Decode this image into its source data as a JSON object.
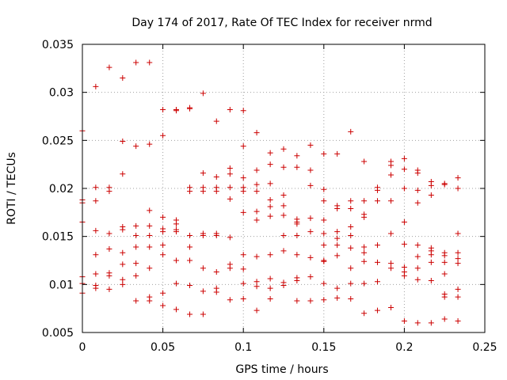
{
  "chart_data": {
    "type": "scatter",
    "title": "Day 174 of 2017, Rate Of TEC Index for receiver nrmd",
    "xlabel": "GPS time / hours",
    "ylabel": "ROTI / TECUs",
    "xlim": [
      0,
      0.25
    ],
    "ylim": [
      0.005,
      0.035
    ],
    "x_ticks": [
      0,
      0.05,
      0.1,
      0.15,
      0.2,
      0.25
    ],
    "x_tick_labels": [
      "0",
      "0.05",
      "0.1",
      "0.15",
      "0.2",
      "0.25"
    ],
    "y_ticks": [
      0.005,
      0.01,
      0.015,
      0.02,
      0.025,
      0.03,
      0.035
    ],
    "y_tick_labels": [
      "0.005",
      "0.01",
      "0.015",
      "0.02",
      "0.025",
      "0.03",
      "0.035"
    ],
    "grid": true,
    "marker": "plus",
    "color": "#cc0000",
    "series": [
      {
        "name": "ROTI",
        "points": [
          [
            0.0,
            0.026
          ],
          [
            0.0,
            0.0188
          ],
          [
            0.0,
            0.0185
          ],
          [
            0.0,
            0.0165
          ],
          [
            0.0,
            0.0108
          ],
          [
            0.0,
            0.0101
          ],
          [
            0.0,
            0.0091
          ],
          [
            0.0083,
            0.0306
          ],
          [
            0.0083,
            0.0201
          ],
          [
            0.0083,
            0.0187
          ],
          [
            0.0083,
            0.0156
          ],
          [
            0.0083,
            0.0131
          ],
          [
            0.0083,
            0.0111
          ],
          [
            0.0083,
            0.0099
          ],
          [
            0.0083,
            0.0096
          ],
          [
            0.0167,
            0.0326
          ],
          [
            0.0167,
            0.0201
          ],
          [
            0.0167,
            0.0197
          ],
          [
            0.0167,
            0.0153
          ],
          [
            0.0167,
            0.0137
          ],
          [
            0.0167,
            0.0112
          ],
          [
            0.0167,
            0.0109
          ],
          [
            0.0167,
            0.0095
          ],
          [
            0.025,
            0.0315
          ],
          [
            0.025,
            0.0249
          ],
          [
            0.025,
            0.0215
          ],
          [
            0.025,
            0.016
          ],
          [
            0.025,
            0.0157
          ],
          [
            0.025,
            0.0133
          ],
          [
            0.025,
            0.0121
          ],
          [
            0.025,
            0.0105
          ],
          [
            0.025,
            0.01
          ],
          [
            0.0333,
            0.0331
          ],
          [
            0.0333,
            0.0244
          ],
          [
            0.0333,
            0.0161
          ],
          [
            0.0333,
            0.0151
          ],
          [
            0.0333,
            0.0139
          ],
          [
            0.0333,
            0.0122
          ],
          [
            0.0333,
            0.0109
          ],
          [
            0.0333,
            0.0083
          ],
          [
            0.0417,
            0.0331
          ],
          [
            0.0417,
            0.0246
          ],
          [
            0.0417,
            0.0177
          ],
          [
            0.0417,
            0.0161
          ],
          [
            0.0417,
            0.0151
          ],
          [
            0.0417,
            0.0139
          ],
          [
            0.0417,
            0.0117
          ],
          [
            0.0417,
            0.0087
          ],
          [
            0.0417,
            0.0083
          ],
          [
            0.05,
            0.0282
          ],
          [
            0.05,
            0.0255
          ],
          [
            0.05,
            0.017
          ],
          [
            0.05,
            0.0158
          ],
          [
            0.05,
            0.0155
          ],
          [
            0.05,
            0.0141
          ],
          [
            0.05,
            0.0131
          ],
          [
            0.05,
            0.0091
          ],
          [
            0.05,
            0.0078
          ],
          [
            0.0583,
            0.0282
          ],
          [
            0.0583,
            0.0281
          ],
          [
            0.0583,
            0.0167
          ],
          [
            0.0583,
            0.0163
          ],
          [
            0.0583,
            0.0157
          ],
          [
            0.0583,
            0.0155
          ],
          [
            0.0583,
            0.0125
          ],
          [
            0.0583,
            0.0101
          ],
          [
            0.0583,
            0.0074
          ],
          [
            0.0667,
            0.0284
          ],
          [
            0.0667,
            0.0283
          ],
          [
            0.0667,
            0.0201
          ],
          [
            0.0667,
            0.0197
          ],
          [
            0.0667,
            0.0151
          ],
          [
            0.0667,
            0.0139
          ],
          [
            0.0667,
            0.0125
          ],
          [
            0.0667,
            0.0099
          ],
          [
            0.0667,
            0.0069
          ],
          [
            0.075,
            0.0299
          ],
          [
            0.075,
            0.0216
          ],
          [
            0.075,
            0.0201
          ],
          [
            0.075,
            0.0197
          ],
          [
            0.075,
            0.0153
          ],
          [
            0.075,
            0.0151
          ],
          [
            0.075,
            0.0117
          ],
          [
            0.075,
            0.0093
          ],
          [
            0.075,
            0.0069
          ],
          [
            0.0833,
            0.027
          ],
          [
            0.0833,
            0.0212
          ],
          [
            0.0833,
            0.0201
          ],
          [
            0.0833,
            0.0197
          ],
          [
            0.0833,
            0.0153
          ],
          [
            0.0833,
            0.0151
          ],
          [
            0.0833,
            0.0113
          ],
          [
            0.0833,
            0.0096
          ],
          [
            0.0833,
            0.0092
          ],
          [
            0.0917,
            0.0282
          ],
          [
            0.0917,
            0.0221
          ],
          [
            0.0917,
            0.0215
          ],
          [
            0.0917,
            0.0201
          ],
          [
            0.0917,
            0.0189
          ],
          [
            0.0917,
            0.0149
          ],
          [
            0.0917,
            0.0121
          ],
          [
            0.0917,
            0.0117
          ],
          [
            0.0917,
            0.0084
          ],
          [
            0.1,
            0.0281
          ],
          [
            0.1,
            0.0244
          ],
          [
            0.1,
            0.0211
          ],
          [
            0.1,
            0.0201
          ],
          [
            0.1,
            0.0197
          ],
          [
            0.1,
            0.0175
          ],
          [
            0.1,
            0.0131
          ],
          [
            0.1,
            0.0116
          ],
          [
            0.1,
            0.0101
          ],
          [
            0.1,
            0.0085
          ],
          [
            0.1083,
            0.0258
          ],
          [
            0.1083,
            0.0219
          ],
          [
            0.1083,
            0.0204
          ],
          [
            0.1083,
            0.0197
          ],
          [
            0.1083,
            0.0176
          ],
          [
            0.1083,
            0.0167
          ],
          [
            0.1083,
            0.0129
          ],
          [
            0.1083,
            0.0103
          ],
          [
            0.1083,
            0.0098
          ],
          [
            0.1083,
            0.0073
          ],
          [
            0.1167,
            0.0237
          ],
          [
            0.1167,
            0.0225
          ],
          [
            0.1167,
            0.0205
          ],
          [
            0.1167,
            0.0188
          ],
          [
            0.1167,
            0.0181
          ],
          [
            0.1167,
            0.0171
          ],
          [
            0.1167,
            0.0131
          ],
          [
            0.1167,
            0.0106
          ],
          [
            0.1167,
            0.0096
          ],
          [
            0.1167,
            0.0085
          ],
          [
            0.125,
            0.0241
          ],
          [
            0.125,
            0.0222
          ],
          [
            0.125,
            0.0193
          ],
          [
            0.125,
            0.0182
          ],
          [
            0.125,
            0.0172
          ],
          [
            0.125,
            0.0151
          ],
          [
            0.125,
            0.0135
          ],
          [
            0.125,
            0.0102
          ],
          [
            0.125,
            0.0099
          ],
          [
            0.1333,
            0.0234
          ],
          [
            0.1333,
            0.0222
          ],
          [
            0.1333,
            0.0168
          ],
          [
            0.1333,
            0.0165
          ],
          [
            0.1333,
            0.0163
          ],
          [
            0.1333,
            0.0151
          ],
          [
            0.1333,
            0.0131
          ],
          [
            0.1333,
            0.0107
          ],
          [
            0.1333,
            0.0104
          ],
          [
            0.1333,
            0.0083
          ],
          [
            0.1417,
            0.0245
          ],
          [
            0.1417,
            0.0219
          ],
          [
            0.1417,
            0.0203
          ],
          [
            0.1417,
            0.0169
          ],
          [
            0.1417,
            0.0155
          ],
          [
            0.1417,
            0.0128
          ],
          [
            0.1417,
            0.0108
          ],
          [
            0.1417,
            0.0083
          ],
          [
            0.15,
            0.0236
          ],
          [
            0.15,
            0.0199
          ],
          [
            0.15,
            0.0187
          ],
          [
            0.15,
            0.0167
          ],
          [
            0.15,
            0.0153
          ],
          [
            0.15,
            0.0141
          ],
          [
            0.15,
            0.0125
          ],
          [
            0.15,
            0.0124
          ],
          [
            0.15,
            0.0101
          ],
          [
            0.15,
            0.0084
          ],
          [
            0.1583,
            0.0236
          ],
          [
            0.1583,
            0.0182
          ],
          [
            0.1583,
            0.0179
          ],
          [
            0.1583,
            0.0155
          ],
          [
            0.1583,
            0.0148
          ],
          [
            0.1583,
            0.0141
          ],
          [
            0.1583,
            0.013
          ],
          [
            0.1583,
            0.0096
          ],
          [
            0.1583,
            0.0086
          ],
          [
            0.1667,
            0.0259
          ],
          [
            0.1667,
            0.0187
          ],
          [
            0.1667,
            0.0179
          ],
          [
            0.1667,
            0.016
          ],
          [
            0.1667,
            0.0151
          ],
          [
            0.1667,
            0.0138
          ],
          [
            0.1667,
            0.0117
          ],
          [
            0.1667,
            0.0101
          ],
          [
            0.1667,
            0.0085
          ],
          [
            0.175,
            0.0228
          ],
          [
            0.175,
            0.0187
          ],
          [
            0.175,
            0.0173
          ],
          [
            0.175,
            0.017
          ],
          [
            0.175,
            0.0139
          ],
          [
            0.175,
            0.0133
          ],
          [
            0.175,
            0.0124
          ],
          [
            0.175,
            0.0101
          ],
          [
            0.175,
            0.007
          ],
          [
            0.1833,
            0.0201
          ],
          [
            0.1833,
            0.0198
          ],
          [
            0.1833,
            0.0187
          ],
          [
            0.1833,
            0.0141
          ],
          [
            0.1833,
            0.0123
          ],
          [
            0.1833,
            0.0103
          ],
          [
            0.1833,
            0.0073
          ],
          [
            0.1917,
            0.0228
          ],
          [
            0.1917,
            0.0224
          ],
          [
            0.1917,
            0.0214
          ],
          [
            0.1917,
            0.0187
          ],
          [
            0.1917,
            0.0153
          ],
          [
            0.1917,
            0.0122
          ],
          [
            0.1917,
            0.0117
          ],
          [
            0.1917,
            0.0076
          ],
          [
            0.2,
            0.0231
          ],
          [
            0.2,
            0.022
          ],
          [
            0.2,
            0.02
          ],
          [
            0.2,
            0.0165
          ],
          [
            0.2,
            0.0142
          ],
          [
            0.2,
            0.0118
          ],
          [
            0.2,
            0.0113
          ],
          [
            0.2,
            0.0109
          ],
          [
            0.2,
            0.0062
          ],
          [
            0.2083,
            0.0219
          ],
          [
            0.2083,
            0.0216
          ],
          [
            0.2083,
            0.0198
          ],
          [
            0.2083,
            0.0185
          ],
          [
            0.2083,
            0.0141
          ],
          [
            0.2083,
            0.0129
          ],
          [
            0.2083,
            0.0117
          ],
          [
            0.2083,
            0.0105
          ],
          [
            0.2083,
            0.006
          ],
          [
            0.2167,
            0.0207
          ],
          [
            0.2167,
            0.0203
          ],
          [
            0.2167,
            0.0193
          ],
          [
            0.2167,
            0.0138
          ],
          [
            0.2167,
            0.0135
          ],
          [
            0.2167,
            0.0131
          ],
          [
            0.2167,
            0.0123
          ],
          [
            0.2167,
            0.0104
          ],
          [
            0.2167,
            0.006
          ],
          [
            0.225,
            0.0205
          ],
          [
            0.225,
            0.0204
          ],
          [
            0.225,
            0.0133
          ],
          [
            0.225,
            0.013
          ],
          [
            0.225,
            0.0123
          ],
          [
            0.225,
            0.0111
          ],
          [
            0.225,
            0.009
          ],
          [
            0.225,
            0.0087
          ],
          [
            0.225,
            0.0064
          ],
          [
            0.2333,
            0.0211
          ],
          [
            0.2333,
            0.02
          ],
          [
            0.2333,
            0.0153
          ],
          [
            0.2333,
            0.0133
          ],
          [
            0.2333,
            0.0127
          ],
          [
            0.2333,
            0.0122
          ],
          [
            0.2333,
            0.0095
          ],
          [
            0.2333,
            0.0087
          ],
          [
            0.2333,
            0.0062
          ]
        ]
      }
    ]
  }
}
